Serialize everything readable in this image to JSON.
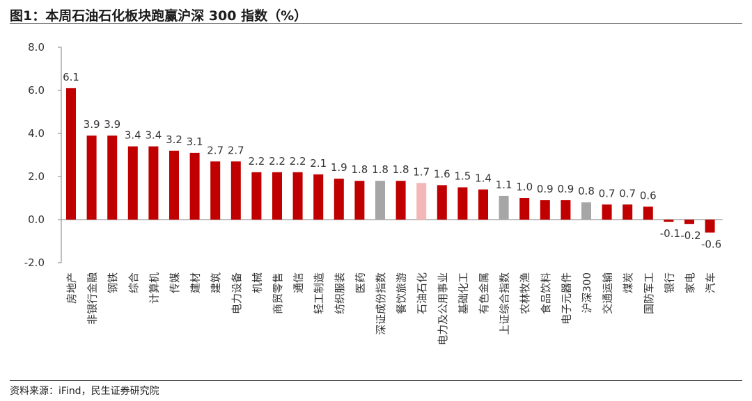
{
  "title": "图1：本周石油石化板块跑赢沪深 300 指数（%）",
  "source": "资料来源：iFind，民生证券研究院",
  "colors": {
    "main": "#c00000",
    "index": "#a6a6a6",
    "highlight": "#f4b6b6"
  },
  "chart_data": {
    "type": "bar",
    "categories": [
      "房地产",
      "非银行金融",
      "钢铁",
      "综合",
      "计算机",
      "传媒",
      "建材",
      "建筑",
      "电力设备",
      "机械",
      "商贸零售",
      "通信",
      "轻工制造",
      "纺织服装",
      "医药",
      "深证成份指数",
      "餐饮旅游",
      "石油石化",
      "电力及公用事业",
      "基础化工",
      "有色金属",
      "上证综合指数",
      "农林牧渔",
      "食品饮料",
      "电子元器件",
      "沪深300",
      "交通运输",
      "煤炭",
      "国防军工",
      "银行",
      "家电",
      "汽车"
    ],
    "values": [
      6.1,
      3.9,
      3.9,
      3.4,
      3.4,
      3.2,
      3.1,
      2.7,
      2.7,
      2.2,
      2.2,
      2.2,
      2.1,
      1.9,
      1.8,
      1.8,
      1.8,
      1.7,
      1.6,
      1.5,
      1.4,
      1.1,
      1.0,
      0.9,
      0.9,
      0.8,
      0.7,
      0.7,
      0.6,
      -0.1,
      -0.2,
      -0.6
    ],
    "value_labels": [
      "6.1",
      "3.9",
      "3.9",
      "3.4",
      "3.4",
      "3.2",
      "3.1",
      "2.7",
      "2.7",
      "2.2",
      "2.2",
      "2.2",
      "2.1",
      "1.9",
      "1.8",
      "1.8",
      "1.8",
      "1.7",
      "1.6",
      "1.5",
      "1.4",
      "1.1",
      "1.0",
      "0.9",
      "0.9",
      "0.8",
      "0.7",
      "0.7",
      "0.6",
      "-0.1",
      "-0.2",
      "-0.6"
    ],
    "bar_colors": [
      "main",
      "main",
      "main",
      "main",
      "main",
      "main",
      "main",
      "main",
      "main",
      "main",
      "main",
      "main",
      "main",
      "main",
      "main",
      "index",
      "main",
      "highlight",
      "main",
      "main",
      "main",
      "index",
      "main",
      "main",
      "main",
      "index",
      "main",
      "main",
      "main",
      "main",
      "main",
      "main"
    ],
    "ylim": [
      -2.0,
      8.0
    ],
    "yticks": [
      "-2.0",
      "0.0",
      "2.0",
      "4.0",
      "6.0",
      "8.0"
    ],
    "grid": false,
    "legend": "none"
  }
}
